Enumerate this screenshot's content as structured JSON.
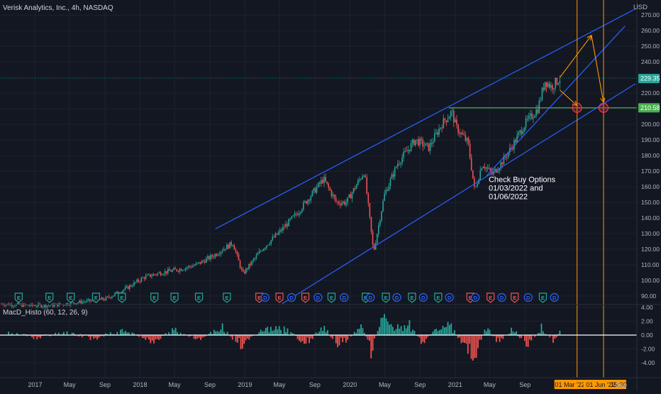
{
  "header": {
    "symbol_title": "Verisk Analytics, Inc., 4h, NASDAQ",
    "currency": "USD"
  },
  "colors": {
    "background": "#131722",
    "grid": "#1e222d",
    "text": "#b2b5be",
    "candle_up": "#26a69a",
    "candle_down": "#ef5350",
    "channel_lines": "#2962ff",
    "horizontal_level": "#4caf50",
    "vertical_markers": "#ff9800",
    "target_arrows": "#ff9800",
    "target_circles": "#f23645",
    "earnings_badge": "#26a69a",
    "dividend_badge": "#2962ff",
    "split_badge": "#ef5350"
  },
  "chart_data": [
    {
      "type": "line",
      "series_style": "candlestick",
      "title": "Verisk Analytics, Inc., 4h, NASDAQ",
      "ylabel": "USD",
      "ylim": [
        85,
        276
      ],
      "y_ticks": [
        90,
        100,
        110,
        120,
        130,
        140,
        150,
        160,
        170,
        180,
        190,
        200,
        210,
        220,
        230,
        240,
        250,
        260,
        270
      ],
      "y_tick_labels": [
        "90.00",
        "100.00",
        "110.00",
        "120.00",
        "130.00",
        "140.00",
        "150.00",
        "160.00",
        "170.00",
        "180.00",
        "190.00",
        "200.00",
        "210.00",
        "220.00",
        "230.00",
        "240.00",
        "250.00",
        "260.00",
        "270.00"
      ],
      "x_range": [
        "2016-09-01",
        "2022-09-25"
      ],
      "x_ticks": [
        "2017-01-01",
        "2017-05-01",
        "2017-09-01",
        "2018-01-01",
        "2018-05-01",
        "2018-09-01",
        "2019-01-01",
        "2019-05-01",
        "2019-09-01",
        "2020-01-01",
        "2020-05-01",
        "2020-09-01",
        "2021-01-01",
        "2021-05-01",
        "2021-09-01"
      ],
      "x_tick_labels": [
        "2017",
        "May",
        "Sep",
        "2018",
        "May",
        "Sep",
        "2019",
        "May",
        "Sep",
        "2020",
        "May",
        "Sep",
        "2021",
        "May",
        "Sep"
      ],
      "grid": true,
      "series": [
        {
          "name": "",
          "x": [
            "2016-09-01",
            "2016-12-01",
            "2017-03-01",
            "2017-06-01",
            "2017-09-01",
            "2017-11-15",
            "2018-01-15",
            "2018-03-15",
            "2018-05-15",
            "2018-07-15",
            "2018-09-15",
            "2018-10-15",
            "2018-11-20",
            "2018-12-24",
            "2019-03-01",
            "2019-05-01",
            "2019-07-01",
            "2019-08-20",
            "2019-10-01",
            "2019-11-15",
            "2019-12-20",
            "2020-02-20",
            "2020-03-23",
            "2020-04-30",
            "2020-06-15",
            "2020-08-15",
            "2020-10-01",
            "2020-11-15",
            "2020-12-20",
            "2021-01-05",
            "2021-02-15",
            "2021-03-10",
            "2021-04-05",
            "2021-05-10",
            "2021-06-10",
            "2021-07-15",
            "2021-08-31",
            "2021-10-15",
            "2021-11-10",
            "2021-12-01",
            "2021-12-31"
          ],
          "values": [
            85,
            84,
            84,
            86,
            88,
            95,
            102,
            105,
            107,
            110,
            116,
            120,
            124,
            104,
            120,
            131,
            143,
            155,
            165,
            150,
            150,
            170,
            118,
            155,
            175,
            190,
            185,
            200,
            208,
            198,
            188,
            157,
            175,
            168,
            175,
            185,
            200,
            210,
            228,
            224,
            229.35
          ]
        }
      ],
      "last_price_label": "229.35",
      "horizontal_level_value": 210.58,
      "horizontal_level_label": "210.58",
      "trendlines": [
        {
          "from": [
            "2018-09-20",
            133
          ],
          "to": [
            "2022-09-20",
            274
          ]
        },
        {
          "from": [
            "2019-05-10",
            85
          ],
          "to": [
            "2022-09-20",
            226
          ]
        },
        {
          "from": [
            "2021-04-20",
            167
          ],
          "to": [
            "2022-08-15",
            263
          ]
        }
      ],
      "vertical_markers": [
        {
          "x": "2022-03-01",
          "label": "01 Mar '22"
        },
        {
          "x": "2022-06-01",
          "label": "01 Jun '22"
        }
      ],
      "vertical_marker_extra_label": "15:30",
      "trailing_x_label": "Sep",
      "target_arrows": [
        {
          "from": [
            "2021-12-31",
            222
          ],
          "to": [
            "2022-03-01",
            212
          ]
        },
        {
          "from": [
            "2021-12-31",
            230
          ],
          "to": [
            "2022-04-20",
            257
          ]
        },
        {
          "from": [
            "2022-04-20",
            257
          ],
          "to": [
            "2022-06-01",
            214
          ]
        }
      ],
      "target_circles": [
        {
          "x": "2022-03-01",
          "y": 210.58
        },
        {
          "x": "2022-06-01",
          "y": 210.58
        }
      ],
      "annotation_lines": [
        "Check Buy Options",
        "01/03/2022 and",
        "01/06/2022"
      ],
      "annotation_anchor": [
        "2021-06-01",
        163
      ],
      "event_badges": [
        {
          "x": "2016-11-05",
          "kind": "earnings",
          "letter": "E"
        },
        {
          "x": "2017-02-20",
          "kind": "earnings",
          "letter": "E"
        },
        {
          "x": "2017-05-05",
          "kind": "earnings",
          "letter": "E"
        },
        {
          "x": "2017-08-01",
          "kind": "earnings",
          "letter": "E"
        },
        {
          "x": "2017-10-30",
          "kind": "earnings",
          "letter": "E"
        },
        {
          "x": "2018-02-20",
          "kind": "earnings",
          "letter": "E"
        },
        {
          "x": "2018-05-01",
          "kind": "earnings",
          "letter": "E"
        },
        {
          "x": "2018-07-25",
          "kind": "earnings",
          "letter": "E"
        },
        {
          "x": "2018-10-30",
          "kind": "earnings",
          "letter": "E"
        },
        {
          "x": "2019-02-20",
          "kind": "split",
          "letter": "E"
        },
        {
          "x": "2019-03-12",
          "kind": "dividend",
          "letter": "D"
        },
        {
          "x": "2019-05-01",
          "kind": "split",
          "letter": "E"
        },
        {
          "x": "2019-06-12",
          "kind": "dividend",
          "letter": "D"
        },
        {
          "x": "2019-07-30",
          "kind": "split",
          "letter": "E"
        },
        {
          "x": "2019-09-12",
          "kind": "dividend",
          "letter": "D"
        },
        {
          "x": "2019-10-29",
          "kind": "earnings",
          "letter": "E"
        },
        {
          "x": "2019-12-12",
          "kind": "dividend",
          "letter": "D"
        },
        {
          "x": "2020-02-25",
          "kind": "earnings",
          "letter": "E"
        },
        {
          "x": "2020-03-12",
          "kind": "dividend",
          "letter": "D"
        },
        {
          "x": "2020-05-05",
          "kind": "earnings",
          "letter": "E"
        },
        {
          "x": "2020-06-12",
          "kind": "dividend",
          "letter": "D"
        },
        {
          "x": "2020-08-04",
          "kind": "earnings",
          "letter": "E"
        },
        {
          "x": "2020-09-12",
          "kind": "dividend",
          "letter": "D"
        },
        {
          "x": "2020-11-03",
          "kind": "earnings",
          "letter": "E"
        },
        {
          "x": "2020-12-12",
          "kind": "dividend",
          "letter": "D"
        },
        {
          "x": "2021-02-23",
          "kind": "split",
          "letter": "E"
        },
        {
          "x": "2021-03-12",
          "kind": "dividend",
          "letter": "D"
        },
        {
          "x": "2021-05-04",
          "kind": "split",
          "letter": "E"
        },
        {
          "x": "2021-06-12",
          "kind": "dividend",
          "letter": "D"
        },
        {
          "x": "2021-07-27",
          "kind": "split",
          "letter": "E"
        },
        {
          "x": "2021-09-12",
          "kind": "dividend",
          "letter": "D"
        },
        {
          "x": "2021-11-02",
          "kind": "earnings",
          "letter": "E"
        },
        {
          "x": "2021-12-12",
          "kind": "dividend",
          "letter": "D"
        }
      ]
    },
    {
      "type": "bar",
      "title": "MacD_Histo (60, 12, 26, 9)",
      "ylim": [
        -5.6,
        4.6
      ],
      "y_ticks": [
        4,
        2,
        0,
        -2,
        -4
      ],
      "y_tick_labels": [
        "4.00",
        "2.00",
        "0.00",
        "-2.00",
        "-4.00"
      ],
      "zero_line": true,
      "series": [
        {
          "name": "",
          "x": [
            "2016-10-01",
            "2017-01-15",
            "2017-04-20",
            "2017-08-01",
            "2017-11-01",
            "2018-02-15",
            "2018-05-01",
            "2018-07-20",
            "2018-10-15",
            "2018-12-24",
            "2019-03-01",
            "2019-05-15",
            "2019-07-30",
            "2019-10-01",
            "2019-11-20",
            "2020-02-15",
            "2020-03-16",
            "2020-04-20",
            "2020-06-10",
            "2020-08-01",
            "2020-09-10",
            "2020-10-29",
            "2020-12-10",
            "2021-02-01",
            "2021-03-08",
            "2021-04-20",
            "2021-06-01",
            "2021-07-20",
            "2021-09-10",
            "2021-10-28",
            "2021-12-10",
            "2021-12-31"
          ],
          "values": [
            0.3,
            -0.4,
            0.5,
            -0.6,
            0.8,
            -1.0,
            0.9,
            -0.8,
            1.2,
            -2.0,
            1.0,
            1.3,
            -1.5,
            1.4,
            -1.8,
            1.6,
            -3.0,
            3.2,
            1.5,
            1.8,
            -1.6,
            1.2,
            2.0,
            -1.8,
            -3.6,
            1.4,
            -1.2,
            1.0,
            -1.5,
            1.3,
            -1.0,
            0.9
          ]
        }
      ]
    }
  ]
}
